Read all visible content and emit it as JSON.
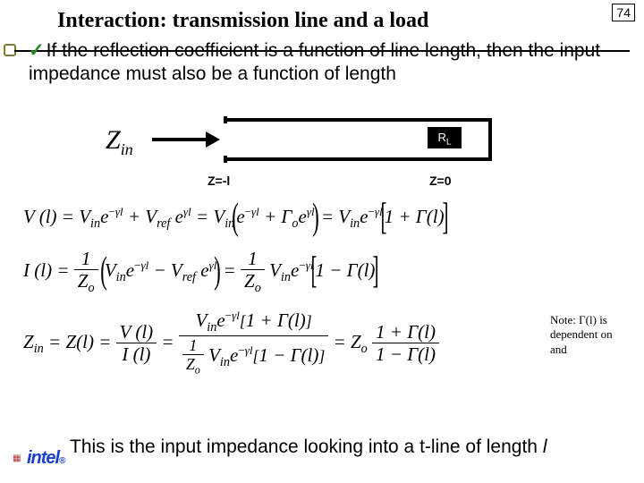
{
  "slide": {
    "title": "Interaction: transmission line and a load",
    "page_number": "74",
    "bullet": "If the reflection coefficient is a function of line length, then the input impedance must also be a function of length",
    "closing_prefix": "This is the input impedance looking into a t-line of length ",
    "closing_var": "l"
  },
  "diagram": {
    "zin_label": "Z",
    "zin_sub": "in",
    "load_label": "R",
    "load_sub": "L",
    "left_pos": "Z=-l",
    "right_pos": "Z=0"
  },
  "equations": {
    "eq1_lhs": "V (l) = ",
    "eq2_lhs": "I (l) = ",
    "eq3_lhs_a": "Z",
    "eq3_lhs_b": " = Z(l) = "
  },
  "note": {
    "line1_a": "Note: ",
    "line1_b": "Γ(l)",
    "line1_c": " is",
    "line2": "dependent on",
    "line3": "and"
  },
  "logo": {
    "text": "intel",
    "reg": "®"
  },
  "colors": {
    "check": "#2a8a2a",
    "intel": "#1a3fd0",
    "dot": "#b03030"
  }
}
